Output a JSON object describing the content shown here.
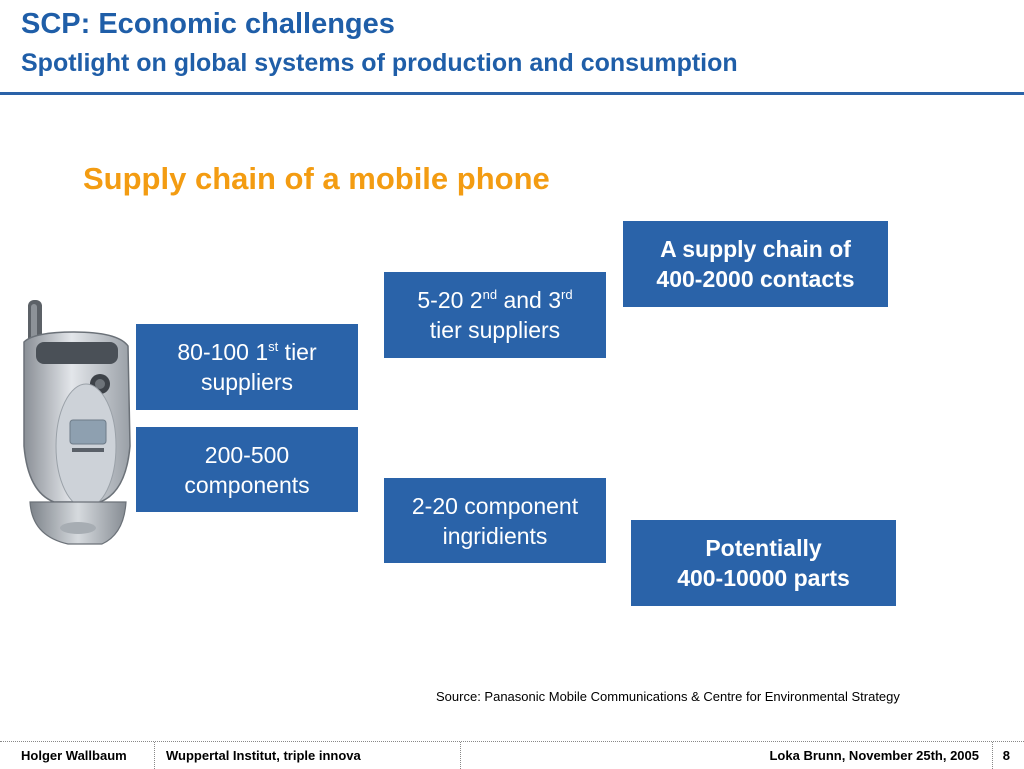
{
  "slide": {
    "title": "SCP: Economic challenges",
    "subtitle": "Spotlight on global systems of production and consumption",
    "heading": "Supply chain of a mobile phone"
  },
  "boxes": {
    "tier1": {
      "number": "80-100 1",
      "sup": "st",
      "tail": " tier",
      "line2": "suppliers"
    },
    "components": {
      "line1": "200-500",
      "line2": "components"
    },
    "tier23": {
      "a": "5-20 2",
      "sup1": "nd",
      "b": " and 3",
      "sup2": "rd",
      "line2": "tier suppliers"
    },
    "ingredients": {
      "line1": "2-20 component",
      "line2": "ingridients"
    },
    "contacts": {
      "line1": "A supply chain of",
      "line2": "400-2000 contacts"
    },
    "parts": {
      "line1": "Potentially",
      "line2": "400-10000 parts"
    }
  },
  "source": "Source: Panasonic Mobile Communications & Centre for Environmental Strategy",
  "footer": {
    "author": "Holger Wallbaum",
    "institute": "Wuppertal Institut, triple innova",
    "event": "Loka Brunn, November 25th, 2005",
    "page": "8"
  },
  "colors": {
    "title_blue": "#1f5ea8",
    "box_blue": "#2a63a9",
    "heading_orange": "#f39c12"
  },
  "icons": [
    "mobile-phone-image"
  ]
}
